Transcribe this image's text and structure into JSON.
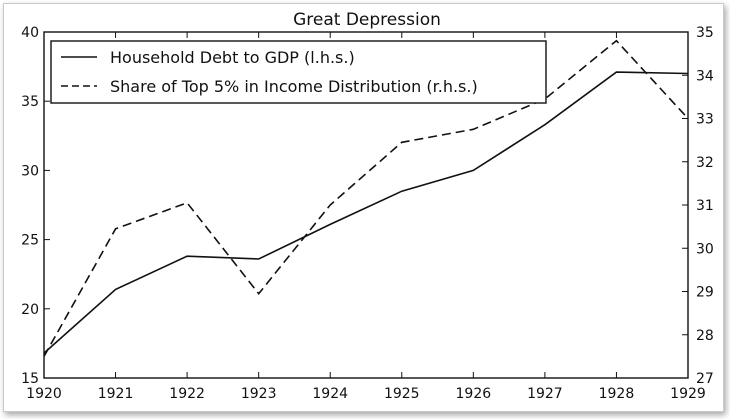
{
  "chart_data": {
    "type": "line",
    "title": "Great Depression",
    "x": [
      1920,
      1921,
      1922,
      1923,
      1924,
      1925,
      1926,
      1927,
      1928,
      1929
    ],
    "x_tick_labels": [
      "1920",
      "1921",
      "1922",
      "1923",
      "1924",
      "1925",
      "1926",
      "1927",
      "1928",
      "1929"
    ],
    "xlim": [
      1920,
      1929
    ],
    "left_axis": {
      "ylim": [
        15,
        40
      ],
      "tick_labels": [
        "15",
        "20",
        "25",
        "30",
        "35",
        "40"
      ]
    },
    "right_axis": {
      "ylim": [
        27,
        35
      ],
      "tick_labels": [
        "27",
        "28",
        "29",
        "30",
        "31",
        "32",
        "33",
        "34",
        "35"
      ]
    },
    "series": [
      {
        "name": "Household Debt to GDP (l.h.s.)",
        "axis": "left",
        "style": "solid",
        "values": [
          16.8,
          21.4,
          23.8,
          23.6,
          26.1,
          28.5,
          30.0,
          33.3,
          37.1,
          37.0
        ]
      },
      {
        "name": "Share of Top 5% in Income Distribution (r.h.s.)",
        "axis": "right",
        "style": "dashed",
        "values": [
          27.5,
          30.45,
          31.05,
          28.95,
          31.0,
          32.45,
          32.75,
          33.45,
          34.8,
          33.0
        ]
      }
    ],
    "legend_position": "top-left",
    "grid": false
  },
  "colors": {
    "line": "#111111",
    "background": "#ffffff"
  }
}
